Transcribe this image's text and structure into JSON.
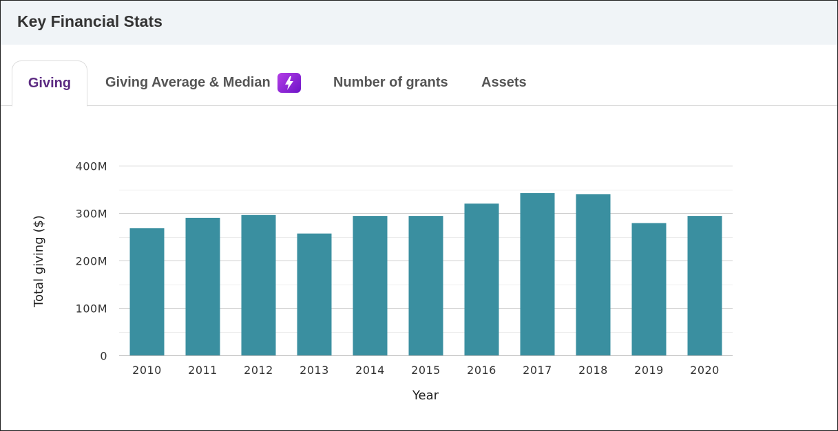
{
  "header": {
    "title": "Key Financial Stats"
  },
  "tabs": [
    {
      "label": "Giving",
      "active": true
    },
    {
      "label": "Giving Average & Median",
      "badge_icon": "lightning-bolt-icon"
    },
    {
      "label": "Number of grants"
    },
    {
      "label": "Assets"
    }
  ],
  "colors": {
    "bar": "#3a8fa0",
    "active_tab": "#5c2b82",
    "badge": "#8a24d6",
    "header_bg": "#f0f4f7"
  },
  "chart_data": {
    "type": "bar",
    "categories": [
      "2010",
      "2011",
      "2012",
      "2013",
      "2014",
      "2015",
      "2016",
      "2017",
      "2018",
      "2019",
      "2020"
    ],
    "values": [
      268000000,
      290000000,
      296000000,
      257000000,
      294000000,
      294000000,
      320000000,
      342000000,
      340000000,
      279000000,
      294000000
    ],
    "xlabel": "Year",
    "ylabel": "Total giving ($)",
    "ylim": [
      0,
      400000000
    ],
    "yticks": [
      {
        "value": 0,
        "label": "0"
      },
      {
        "value": 100000000,
        "label": "100M"
      },
      {
        "value": 200000000,
        "label": "200M"
      },
      {
        "value": 300000000,
        "label": "300M"
      },
      {
        "value": 400000000,
        "label": "400M"
      }
    ],
    "grid": true
  }
}
